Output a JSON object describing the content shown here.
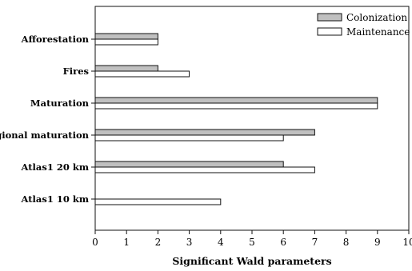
{
  "chart_data": {
    "type": "bar",
    "orientation": "horizontal",
    "title": "",
    "xlabel": "Significant Wald parameters",
    "ylabel": "",
    "xlim": [
      0,
      10
    ],
    "xticks": [
      0,
      1,
      2,
      3,
      4,
      5,
      6,
      7,
      8,
      9,
      10
    ],
    "grid": false,
    "legend_position": "top-right",
    "categories": [
      "Afforestation",
      "Fires",
      "Maturation",
      "Regional maturation",
      "Atlas1 20 km",
      "Atlas1 10 km"
    ],
    "series": [
      {
        "name": "Colonization",
        "color": "#c0c0c0",
        "values": [
          2,
          2,
          9,
          7,
          6,
          0
        ]
      },
      {
        "name": "Maintenance",
        "color": "#ffffff",
        "values": [
          2,
          3,
          9,
          6,
          7,
          4
        ]
      }
    ]
  }
}
